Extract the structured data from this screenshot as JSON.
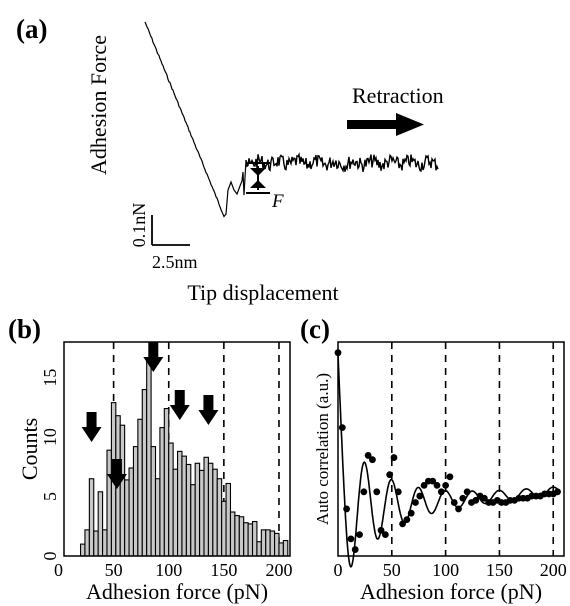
{
  "figure": {
    "panel_a_label": "(a)",
    "panel_b_label": "(b)",
    "panel_c_label": "(c)"
  },
  "chart_data": [
    {
      "panel": "(a)",
      "type": "line",
      "ylabel": "Adhesion Force",
      "xlabel": "Tip displacement",
      "annotation_retraction": "Retraction",
      "annotation_F": "F",
      "scalebar_y": "0.1nN",
      "scalebar_x": "2.5nm",
      "description_visible": "force-distance retraction curve with jump-off step labelled F"
    },
    {
      "panel": "(b)",
      "type": "bar",
      "xlabel": "Adhesion force (pN)",
      "ylabel": "Counts",
      "xlim": [
        5,
        210
      ],
      "ylim": [
        0,
        18
      ],
      "xticks": [
        "0",
        "50",
        "100",
        "150",
        "200"
      ],
      "yticks": [
        "0",
        "5",
        "10",
        "15"
      ],
      "dashed_lines_x": [
        50,
        100,
        150,
        200
      ],
      "arrows_at_x": [
        30,
        53,
        86,
        110,
        136
      ],
      "bin_width": 4,
      "bin_centers": [
        22,
        26,
        30,
        34,
        38,
        42,
        46,
        50,
        54,
        58,
        62,
        66,
        70,
        74,
        78,
        82,
        86,
        90,
        94,
        98,
        102,
        106,
        110,
        114,
        118,
        122,
        126,
        130,
        134,
        138,
        142,
        146,
        150,
        154,
        158,
        162,
        166,
        170,
        174,
        178,
        182,
        186,
        190,
        194,
        198,
        202,
        206
      ],
      "values": [
        1,
        2.2,
        6.5,
        2.1,
        5.4,
        2.2,
        8.9,
        12.9,
        11.8,
        11,
        6.4,
        7.4,
        9.2,
        11.5,
        14,
        16.5,
        9.2,
        6.5,
        10.8,
        12.4,
        9.5,
        7.3,
        8.8,
        8.4,
        7.7,
        6,
        7.8,
        7.2,
        8.3,
        7.8,
        7.3,
        6.5,
        4.6,
        6.1,
        3.7,
        3.4,
        3.3,
        2.8,
        2.7,
        2.9,
        1.2,
        2.2,
        2.2,
        2.1,
        1.9,
        1.1,
        1.3
      ],
      "grid": false
    },
    {
      "panel": "(c)",
      "type": "line",
      "xlabel": "Adhesion force (pN)",
      "ylabel": "Auto correlation (a.u.)",
      "xlim": [
        0,
        210
      ],
      "xticks": [
        "0",
        "50",
        "100",
        "150",
        "200"
      ],
      "dashed_lines_x": [
        50,
        100,
        150,
        200
      ],
      "points_x": [
        0,
        4,
        8,
        12,
        16,
        20,
        24,
        28,
        32,
        36,
        40,
        44,
        48,
        52,
        56,
        60,
        64,
        68,
        72,
        76,
        80,
        84,
        88,
        92,
        96,
        100,
        104,
        108,
        112,
        116,
        120,
        124,
        128,
        132,
        136,
        140,
        144,
        148,
        152,
        156,
        160,
        164,
        168,
        172,
        176,
        180,
        184,
        188,
        192,
        196,
        200,
        204
      ],
      "points_y": [
        0.95,
        0.6,
        0.22,
        0.08,
        0.03,
        0.1,
        0.3,
        0.47,
        0.45,
        0.3,
        0.12,
        0.1,
        0.38,
        0.46,
        0.3,
        0.15,
        0.17,
        0.2,
        0.25,
        0.28,
        0.33,
        0.35,
        0.35,
        0.33,
        0.3,
        0.33,
        0.37,
        0.25,
        0.22,
        0.27,
        0.3,
        0.25,
        0.26,
        0.28,
        0.27,
        0.25,
        0.25,
        0.26,
        0.25,
        0.25,
        0.26,
        0.26,
        0.27,
        0.27,
        0.27,
        0.28,
        0.28,
        0.28,
        0.29,
        0.29,
        0.29,
        0.3
      ],
      "fit_curve_description": "damped oscillation"
    }
  ]
}
